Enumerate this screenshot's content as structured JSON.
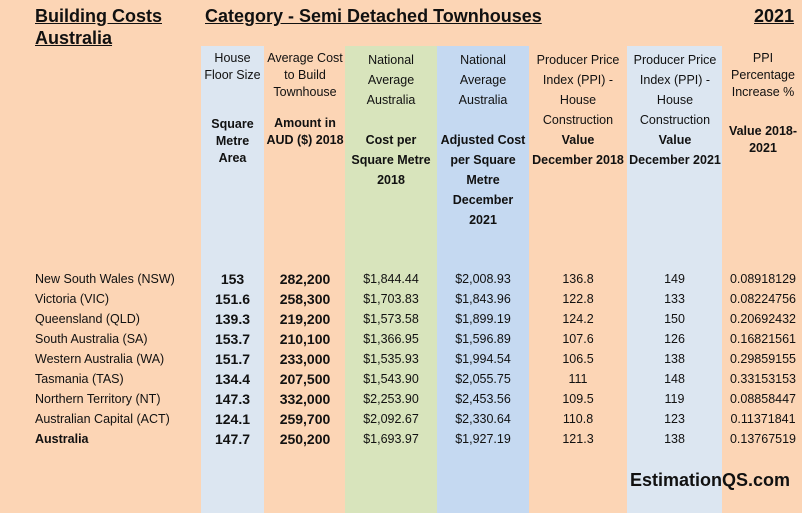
{
  "title_left": [
    "Building Costs",
    "Australia"
  ],
  "title_center": "Category - Semi Detached Townhouses",
  "title_year": "2021",
  "headers": [
    {
      "top": "House Floor Size",
      "bottom": "Square Metre Area"
    },
    {
      "top": "Average Cost to Build Townhouse",
      "bottom": "Amount in AUD ($) 2018"
    },
    {
      "top": "National Average Australia",
      "bottom": "Cost per Square Metre 2018"
    },
    {
      "top": "National Average Australia",
      "bottom": "Adjusted Cost per Square Metre December 2021"
    },
    {
      "top": "Producer Price Index (PPI) - House Construction",
      "bottom": "Value December 2018"
    },
    {
      "top": "Producer Price Index (PPI) - House Construction",
      "bottom": "Value December 2021"
    },
    {
      "top": "PPI Percentage Increase %",
      "bottom": "Value 2018-2021"
    }
  ],
  "rows": [
    {
      "name": "New South Wales (NSW)",
      "size": "153",
      "cost": "282,200",
      "cpsm": "$1,844.44",
      "adj": "$2,008.93",
      "ppi18": "136.8",
      "ppi21": "149",
      "inc": "0.08918129"
    },
    {
      "name": "Victoria (VIC)",
      "size": "151.6",
      "cost": "258,300",
      "cpsm": "$1,703.83",
      "adj": "$1,843.96",
      "ppi18": "122.8",
      "ppi21": "133",
      "inc": "0.08224756"
    },
    {
      "name": "Queensland (QLD)",
      "size": "139.3",
      "cost": "219,200",
      "cpsm": "$1,573.58",
      "adj": "$1,899.19",
      "ppi18": "124.2",
      "ppi21": "150",
      "inc": "0.20692432"
    },
    {
      "name": "South Australia (SA)",
      "size": "153.7",
      "cost": "210,100",
      "cpsm": "$1,366.95",
      "adj": "$1,596.89",
      "ppi18": "107.6",
      "ppi21": "126",
      "inc": "0.16821561"
    },
    {
      "name": "Western Australia (WA)",
      "size": "151.7",
      "cost": "233,000",
      "cpsm": "$1,535.93",
      "adj": "$1,994.54",
      "ppi18": "106.5",
      "ppi21": "138",
      "inc": "0.29859155"
    },
    {
      "name": "Tasmania (TAS)",
      "size": "134.4",
      "cost": "207,500",
      "cpsm": "$1,543.90",
      "adj": "$2,055.75",
      "ppi18": "111",
      "ppi21": "148",
      "inc": "0.33153153"
    },
    {
      "name": "Northern Territory (NT)",
      "size": "147.3",
      "cost": "332,000",
      "cpsm": "$2,253.90",
      "adj": "$2,453.56",
      "ppi18": "109.5",
      "ppi21": "119",
      "inc": "0.08858447"
    },
    {
      "name": "Australian Capital (ACT)",
      "size": "124.1",
      "cost": "259,700",
      "cpsm": "$2,092.67",
      "adj": "$2,330.64",
      "ppi18": "110.8",
      "ppi21": "123",
      "inc": "0.11371841"
    },
    {
      "name": "Australia",
      "size": "147.7",
      "cost": "250,200",
      "cpsm": "$1,693.97",
      "adj": "$1,927.19",
      "ppi18": "121.3",
      "ppi21": "138",
      "inc": "0.13767519"
    }
  ],
  "brand": "EstimationQS.com",
  "colors": {
    "background": "#fcd5b5",
    "blue_col": "#dce6f1",
    "green_col": "#d8e4bc",
    "blue_dark_col": "#c5d9f1"
  }
}
